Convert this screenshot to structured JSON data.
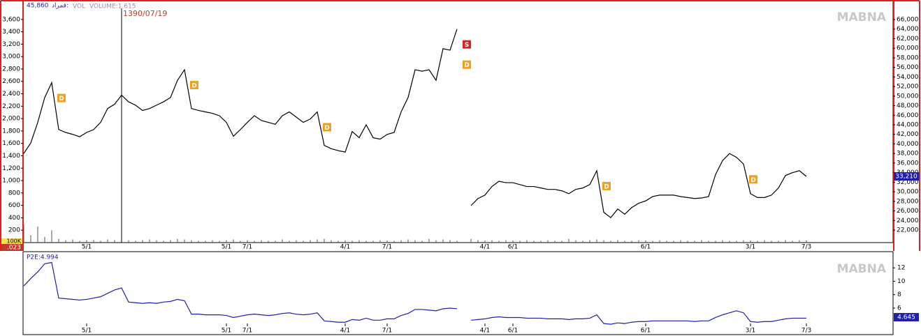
{
  "chart_data": [
    {
      "type": "line",
      "header": [
        "45,860",
        "قمراد:",
        "VOL",
        "VOLUME:1.615"
      ],
      "watermark": "MABNA",
      "cursor": {
        "label": "1390/07/19",
        "index": 14
      },
      "categories": [
        null,
        null,
        null,
        null,
        null,
        null,
        null,
        null,
        null,
        "5/1",
        null,
        null,
        null,
        null,
        null,
        null,
        null,
        null,
        null,
        null,
        null,
        null,
        null,
        null,
        null,
        null,
        null,
        null,
        null,
        "5/1",
        null,
        null,
        "7/1",
        null,
        null,
        null,
        null,
        null,
        null,
        null,
        null,
        null,
        null,
        null,
        null,
        null,
        "4/1",
        null,
        null,
        null,
        null,
        null,
        "7/1",
        null,
        null,
        null,
        null,
        null,
        null,
        null,
        null,
        null,
        null,
        null,
        null,
        null,
        "4/1",
        null,
        null,
        null,
        "6/1",
        null,
        null,
        null,
        null,
        null,
        null,
        null,
        null,
        null,
        null,
        null,
        null,
        null,
        null,
        null,
        null,
        null,
        null,
        "6/1",
        null,
        null,
        null,
        null,
        null,
        null,
        null,
        null,
        null,
        null,
        null,
        null,
        null,
        null,
        "3/1",
        null,
        null,
        null,
        null,
        null,
        null,
        null,
        "7/3"
      ],
      "series": [
        {
          "color": "#000000",
          "axis": "y2",
          "values": [
            38000,
            40200,
            44500,
            49700,
            52800,
            43000,
            42400,
            42000,
            41500,
            42400,
            43000,
            44500,
            47400,
            48300,
            50200,
            48800,
            48100,
            47000,
            47400,
            48100,
            48800,
            49700,
            53300,
            55500,
            47400,
            47000,
            46700,
            46400,
            45900,
            44500,
            41600,
            43000,
            44500,
            45900,
            44900,
            44500,
            44100,
            45900,
            46700,
            45600,
            44500,
            45200,
            46700,
            39700,
            39000,
            38600,
            38300,
            42600,
            41300,
            44000,
            41300,
            41000,
            42000,
            42400,
            46700,
            49700,
            55500,
            55200,
            55500,
            53300,
            59900,
            59600,
            64000,
            null,
            27100,
            28600,
            29300,
            31100,
            32200,
            31900,
            31900,
            31500,
            31100,
            31100,
            30800,
            30500,
            30500,
            30200,
            29600,
            30500,
            30800,
            31500,
            34400,
            25700,
            24600,
            26400,
            25300,
            26700,
            27600,
            28100,
            29000,
            29300,
            29300,
            29300,
            29000,
            28800,
            28600,
            28700,
            29000,
            33600,
            36500,
            38000,
            37200,
            35800,
            29600,
            28800,
            28800,
            29300,
            30800,
            33400,
            34000,
            34400,
            33200
          ]
        }
      ],
      "volume": {
        "color": "#555555",
        "values": [
          300,
          120,
          260,
          90,
          200,
          60,
          40,
          50,
          30,
          40,
          40,
          30,
          50,
          40,
          90,
          40,
          30,
          40,
          50,
          40,
          30,
          40,
          60,
          50,
          40,
          30,
          30,
          40,
          30,
          40,
          50,
          30,
          40,
          30,
          40,
          30,
          30,
          50,
          30,
          40,
          30,
          40,
          50,
          60,
          40,
          30,
          40,
          30,
          40,
          30,
          30,
          40,
          30,
          30,
          40,
          50,
          40,
          30,
          60,
          40,
          50,
          40,
          30,
          0,
          60,
          40,
          30,
          40,
          30,
          40,
          30,
          30,
          40,
          30,
          30,
          40,
          30,
          30,
          60,
          40,
          30,
          40,
          50,
          40,
          30,
          40,
          30,
          30,
          40,
          30,
          30,
          40,
          30,
          30,
          40,
          30,
          30,
          40,
          30,
          30,
          40,
          30,
          30,
          40,
          30,
          30,
          40,
          30,
          30,
          40,
          30,
          40,
          30
        ]
      },
      "ylim": [
        0,
        3890
      ],
      "yticks": [
        200,
        400,
        600,
        800,
        {
          "value": 1000,
          "label": "1,000"
        },
        {
          "value": 1200,
          "label": "1,200"
        },
        {
          "value": 1400,
          "label": "1,400"
        },
        {
          "value": 1600,
          "label": "1,600"
        },
        {
          "value": 1800,
          "label": "1,800"
        },
        {
          "value": 2000,
          "label": "2,000"
        },
        {
          "value": 2200,
          "label": "2,200"
        },
        {
          "value": 2400,
          "label": "2,400"
        },
        {
          "value": 2600,
          "label": "2,600"
        },
        {
          "value": 2800,
          "label": "2,800"
        },
        {
          "value": 3000,
          "label": "3,000"
        },
        {
          "value": 3200,
          "label": "3,200"
        },
        {
          "value": 3400,
          "label": "3,400"
        },
        {
          "value": 3600,
          "label": "3,600"
        }
      ],
      "y2lim": [
        19380,
        69790
      ],
      "y2ticks": [
        {
          "value": 22000,
          "label": "22,000"
        },
        {
          "value": 24000,
          "label": "24,000"
        },
        {
          "value": 26000,
          "label": "26,000"
        },
        {
          "value": 28000,
          "label": "28,000"
        },
        {
          "value": 30000,
          "label": "30,000"
        },
        {
          "value": 32000,
          "label": "32,000"
        },
        {
          "value": 34000,
          "label": "34,000"
        },
        {
          "value": 36000,
          "label": "36,000"
        },
        {
          "value": 38000,
          "label": "38,000"
        },
        {
          "value": 40000,
          "label": "40,000"
        },
        {
          "value": 42000,
          "label": "42,000"
        },
        {
          "value": 44000,
          "label": "44,000"
        },
        {
          "value": 46000,
          "label": "46,000"
        },
        {
          "value": 48000,
          "label": "48,000"
        },
        {
          "value": 50000,
          "label": "50,000"
        },
        {
          "value": 52000,
          "label": "52,000"
        },
        {
          "value": 54000,
          "label": "54,000"
        },
        {
          "value": 56000,
          "label": "56,000"
        },
        {
          "value": 58000,
          "label": "58,000"
        },
        {
          "value": 60000,
          "label": "60,000"
        },
        {
          "value": 62000,
          "label": "62,000"
        },
        {
          "value": 64000,
          "label": "64,000"
        },
        {
          "value": 66000,
          "label": "66,000"
        }
      ],
      "last_value": {
        "value": 33210,
        "label": "33,210"
      },
      "left_badges": [
        "100K",
        ".023"
      ],
      "markers": [
        {
          "label": "D",
          "index": 5,
          "color": "#f0a020"
        },
        {
          "label": "D",
          "index": 24,
          "color": "#f0a020"
        },
        {
          "label": "D",
          "index": 43,
          "color": "#f0a020"
        },
        {
          "label": "S",
          "index": 63,
          "color": "#d02828"
        },
        {
          "label": "D",
          "index": 63,
          "color": "#f0a020"
        },
        {
          "label": "D",
          "index": 83,
          "color": "#f0a020"
        },
        {
          "label": "D",
          "index": 104,
          "color": "#f0a020"
        }
      ]
    },
    {
      "type": "line",
      "title": "P2E:4.994",
      "watermark": "MABNA",
      "series": [
        {
          "color": "#1f1fa8",
          "values": [
            9.3,
            10.4,
            11.4,
            12.6,
            12.8,
            7.5,
            7.4,
            7.3,
            7.2,
            7.3,
            7.5,
            7.7,
            8.2,
            8.7,
            9.0,
            6.9,
            6.8,
            6.7,
            6.8,
            6.7,
            6.9,
            7.0,
            7.3,
            7.1,
            5.1,
            5.1,
            5.0,
            5.0,
            5.0,
            4.9,
            4.6,
            4.8,
            5.0,
            5.1,
            5.0,
            4.9,
            5.0,
            5.2,
            5.3,
            5.1,
            5.0,
            5.1,
            5.3,
            4.1,
            4.0,
            3.9,
            3.9,
            4.3,
            4.2,
            4.5,
            4.2,
            4.2,
            4.4,
            4.4,
            4.9,
            5.2,
            5.8,
            5.8,
            5.7,
            5.6,
            5.9,
            6.0,
            5.9,
            null,
            4.2,
            4.3,
            4.4,
            4.6,
            4.7,
            4.6,
            4.6,
            4.6,
            4.5,
            4.5,
            4.5,
            4.4,
            4.4,
            4.4,
            4.3,
            4.4,
            4.4,
            4.5,
            5.0,
            3.7,
            3.6,
            3.8,
            3.7,
            3.9,
            4.0,
            4.0,
            4.1,
            4.1,
            4.1,
            4.1,
            4.1,
            4.1,
            4.0,
            4.1,
            4.1,
            4.6,
            5.0,
            5.3,
            5.6,
            5.3,
            4.0,
            3.9,
            4.0,
            4.0,
            4.2,
            4.4,
            4.5,
            4.5,
            4.5
          ]
        }
      ],
      "ylim": [
        3.3,
        14.2
      ],
      "yticks": [
        6,
        8,
        10,
        12
      ],
      "last_value": {
        "value": 4.645,
        "label": "4.645"
      }
    }
  ]
}
